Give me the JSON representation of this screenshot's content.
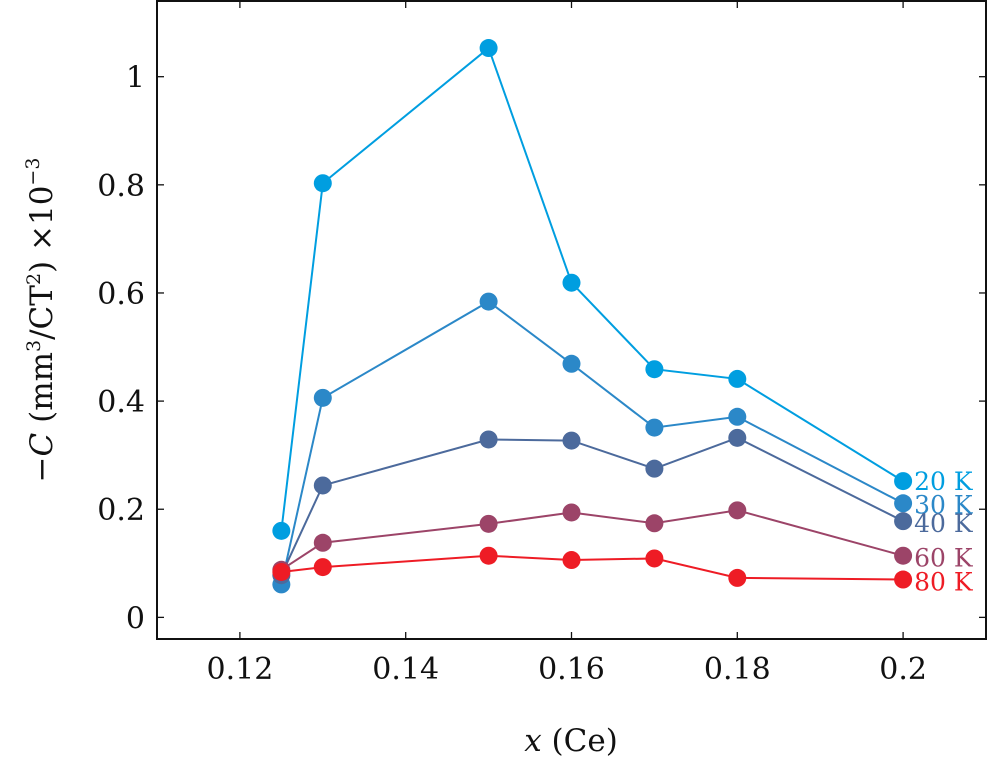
{
  "chart_data": {
    "type": "line",
    "title": "",
    "xlabel": {
      "var": "x",
      "rest": " (Ce)"
    },
    "ylabel": {
      "neg": "−",
      "var": "C",
      "units_pre": " (mm",
      "sup1": "3",
      "units_mid": "/CT",
      "sup2": "2",
      "units_post": ")",
      "scale_pre": " ×10",
      "sup3": "−3"
    },
    "xlim": [
      0.11,
      0.21
    ],
    "ylim": [
      -0.04,
      1.14
    ],
    "xticks": [
      0.12,
      0.14,
      0.16,
      0.18,
      0.2
    ],
    "xtick_labels": [
      "0.12",
      "0.14",
      "0.16",
      "0.18",
      "0.2"
    ],
    "yticks": [
      0,
      0.2,
      0.4,
      0.6,
      0.8,
      1.0
    ],
    "ytick_labels": [
      "0",
      "0.2",
      "0.4",
      "0.6",
      "0.8",
      "1"
    ],
    "grid": false,
    "legend": "inline-right",
    "x": [
      0.125,
      0.13,
      0.15,
      0.16,
      0.17,
      0.18,
      0.2
    ],
    "series": [
      {
        "name": "20 K",
        "color": "#009ee0",
        "values": [
          0.16,
          0.803,
          1.053,
          0.619,
          0.459,
          0.441,
          0.252
        ]
      },
      {
        "name": "30 K",
        "color": "#2b88c8",
        "values": [
          0.061,
          0.406,
          0.584,
          0.469,
          0.351,
          0.371,
          0.211
        ]
      },
      {
        "name": "40 K",
        "color": "#4c6a9c",
        "values": [
          0.078,
          0.244,
          0.329,
          0.327,
          0.275,
          0.332,
          0.178
        ]
      },
      {
        "name": "60 K",
        "color": "#9c4468",
        "values": [
          0.088,
          0.138,
          0.173,
          0.194,
          0.174,
          0.198,
          0.114
        ]
      },
      {
        "name": "80 K",
        "color": "#ee1c25",
        "values": [
          0.084,
          0.093,
          0.114,
          0.106,
          0.109,
          0.073,
          0.07
        ]
      }
    ]
  }
}
